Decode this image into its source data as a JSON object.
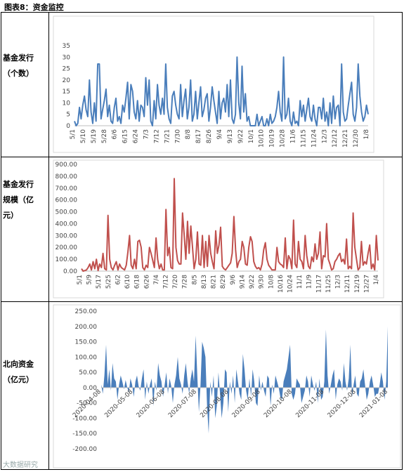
{
  "title": "图表8：资金监控",
  "rows": [
    {
      "label_lines": [
        "基金发行",
        "（个数）"
      ]
    },
    {
      "label_lines": [
        "基金发行",
        "规模（亿",
        "元）"
      ]
    },
    {
      "label_lines": [
        "北向资金",
        "（亿元）"
      ]
    }
  ],
  "watermark": "大数据研究",
  "chart_data": [
    {
      "type": "line",
      "color": "#4a7ebb",
      "ylim": [
        0,
        35
      ],
      "yticks": [
        "0",
        "5",
        "10",
        "15",
        "20",
        "25",
        "30",
        "35"
      ],
      "xticks": [
        "5/1",
        "5/10",
        "5/19",
        "5/28",
        "6/6",
        "6/15",
        "6/24",
        "7/3",
        "7/12",
        "7/21",
        "7/30",
        "8/8",
        "8/17",
        "8/26",
        "9/4",
        "9/13",
        "9/22",
        "10/1",
        "10/10",
        "10/19",
        "10/28",
        "11/6",
        "11/15",
        "11/24",
        "12/3",
        "12/12",
        "12/21",
        "12/30",
        "1/8"
      ],
      "values": [
        2,
        0,
        1,
        8,
        3,
        9,
        13,
        7,
        4,
        20,
        6,
        1,
        10,
        2,
        27,
        27,
        3,
        7,
        11,
        16,
        4,
        9,
        2,
        1,
        8,
        12,
        2,
        4,
        1,
        9,
        6,
        12,
        19,
        3,
        18,
        15,
        6,
        3,
        11,
        2,
        9,
        8,
        4,
        21,
        9,
        20,
        2,
        0,
        11,
        3,
        18,
        9,
        5,
        12,
        5,
        27,
        8,
        3,
        1,
        13,
        15,
        9,
        5,
        3,
        18,
        4,
        11,
        16,
        3,
        8,
        20,
        2,
        5,
        15,
        3,
        10,
        17,
        4,
        7,
        12,
        14,
        2,
        8,
        17,
        11,
        6,
        1,
        15,
        3,
        10,
        12,
        6,
        18,
        4,
        20,
        3,
        1,
        5,
        30,
        10,
        3,
        26,
        6,
        14,
        2,
        4,
        0,
        0,
        0,
        0,
        5,
        0,
        2,
        4,
        0,
        0,
        3,
        0,
        5,
        1,
        2,
        4,
        8,
        15,
        6,
        2,
        30,
        3,
        5,
        12,
        2,
        0,
        6,
        1,
        2,
        0,
        11,
        4,
        9,
        2,
        7,
        12,
        4,
        2,
        9,
        3,
        0,
        8,
        8,
        3,
        12,
        2,
        6,
        0,
        10,
        1,
        13,
        3,
        8,
        9,
        0,
        27,
        6,
        2,
        3,
        9,
        14,
        19,
        5,
        2,
        8,
        27,
        13,
        6,
        2,
        4,
        9,
        5
      ]
    },
    {
      "type": "line",
      "color": "#c0504d",
      "ylim": [
        0,
        900
      ],
      "yticks": [
        "0.00",
        "100.00",
        "200.00",
        "300.00",
        "400.00",
        "500.00",
        "600.00",
        "700.00",
        "800.00",
        "900.00"
      ],
      "xticks": [
        "5/1",
        "5/9",
        "5/17",
        "5/25",
        "6/2",
        "6/10",
        "6/18",
        "6/26",
        "7/4",
        "7/12",
        "7/20",
        "7/28",
        "8/5",
        "8/13",
        "8/21",
        "8/29",
        "9/6",
        "9/14",
        "9/22",
        "9/30",
        "10/8",
        "10/16",
        "10/24",
        "11/1",
        "11/9",
        "11/17",
        "11/25",
        "12/3",
        "12/11",
        "12/19",
        "12/27",
        "1/4"
      ],
      "values": [
        20,
        0,
        5,
        10,
        30,
        60,
        10,
        80,
        20,
        100,
        5,
        60,
        30,
        150,
        20,
        10,
        470,
        100,
        30,
        10,
        50,
        80,
        10,
        60,
        30,
        20,
        10,
        50,
        160,
        300,
        50,
        20,
        100,
        20,
        250,
        260,
        200,
        30,
        10,
        50,
        30,
        200,
        150,
        90,
        30,
        280,
        100,
        20,
        60,
        10,
        10,
        520,
        130,
        200,
        30,
        20,
        780,
        200,
        90,
        60,
        60,
        490,
        300,
        100,
        420,
        150,
        380,
        200,
        20,
        100,
        330,
        60,
        50,
        300,
        30,
        250,
        40,
        300,
        150,
        80,
        20,
        340,
        150,
        220,
        370,
        40,
        20,
        10,
        30,
        50,
        70,
        150,
        460,
        180,
        30,
        80,
        100,
        250,
        200,
        60,
        50,
        200,
        290,
        250,
        80,
        40,
        20,
        30,
        10,
        60,
        180,
        240,
        100,
        50,
        30,
        10,
        10,
        10,
        200,
        80,
        60,
        50,
        30,
        280,
        20,
        130,
        100,
        20,
        430,
        60,
        30,
        250,
        100,
        80,
        20,
        300,
        130,
        40,
        20,
        120,
        80,
        230,
        100,
        150,
        330,
        20,
        130,
        120,
        400,
        100,
        60,
        10,
        20,
        80,
        100,
        130,
        150,
        80,
        100,
        60,
        270,
        20,
        40,
        20,
        490,
        200,
        100,
        10,
        30,
        250,
        50,
        80,
        60,
        150,
        220,
        20,
        60,
        10,
        300,
        90
      ]
    },
    {
      "type": "area",
      "color": "#4a7ebb",
      "ylim": [
        -200,
        250
      ],
      "yticks": [
        "-200.00",
        "-150.00",
        "-100.00",
        "-50.00",
        "0.00",
        "50.00",
        "100.00",
        "150.00",
        "200.00",
        "250.00"
      ],
      "xticks": [
        "2020-04-08",
        "2020-05-08",
        "2020-06-08",
        "2020-07-08",
        "2020-08-08",
        "2020-09-08",
        "2020-10-08",
        "2020-11-08",
        "2020-12-08",
        "2021-01-08"
      ],
      "values": [
        10,
        -20,
        40,
        140,
        10,
        60,
        -10,
        80,
        30,
        20,
        -40,
        10,
        40,
        20,
        -5,
        25,
        0,
        -15,
        30,
        10,
        -30,
        20,
        40,
        5,
        -10,
        30,
        60,
        -40,
        20,
        -20,
        10,
        30,
        -60,
        20,
        -10,
        80,
        40,
        20,
        -30,
        10,
        50,
        -20,
        30,
        5,
        -50,
        10,
        40,
        100,
        30,
        10,
        -20,
        40,
        80,
        20,
        -20,
        30,
        60,
        20,
        170,
        40,
        -80,
        10,
        150,
        130,
        100,
        -60,
        -150,
        20,
        -30,
        40,
        -100,
        -60,
        50,
        -20,
        -100,
        -50,
        60,
        50,
        -80,
        20,
        -20,
        40,
        -50,
        60,
        20,
        -20,
        -40,
        110,
        60,
        -10,
        -40,
        30,
        -30,
        60,
        20,
        -50,
        -60,
        40,
        -10,
        20,
        -10,
        -30,
        40,
        30,
        -60,
        10,
        -20,
        40,
        20,
        0,
        -30,
        -40,
        20,
        40,
        60,
        100,
        140,
        -20,
        -40,
        -20,
        30,
        20,
        10,
        -50,
        -30,
        -10,
        40,
        20,
        -30,
        40,
        10,
        -10,
        20,
        -50,
        30,
        -40,
        -30,
        20,
        190,
        40,
        -20,
        10,
        40,
        60,
        -40,
        10,
        30,
        20,
        -10,
        80,
        20,
        -10,
        30,
        140,
        -30,
        10,
        40,
        -20,
        -30,
        20,
        30,
        60,
        10,
        -40,
        -20,
        20,
        40,
        10,
        -30,
        -20,
        -20,
        10,
        50,
        20,
        -40,
        20,
        200
      ]
    }
  ]
}
